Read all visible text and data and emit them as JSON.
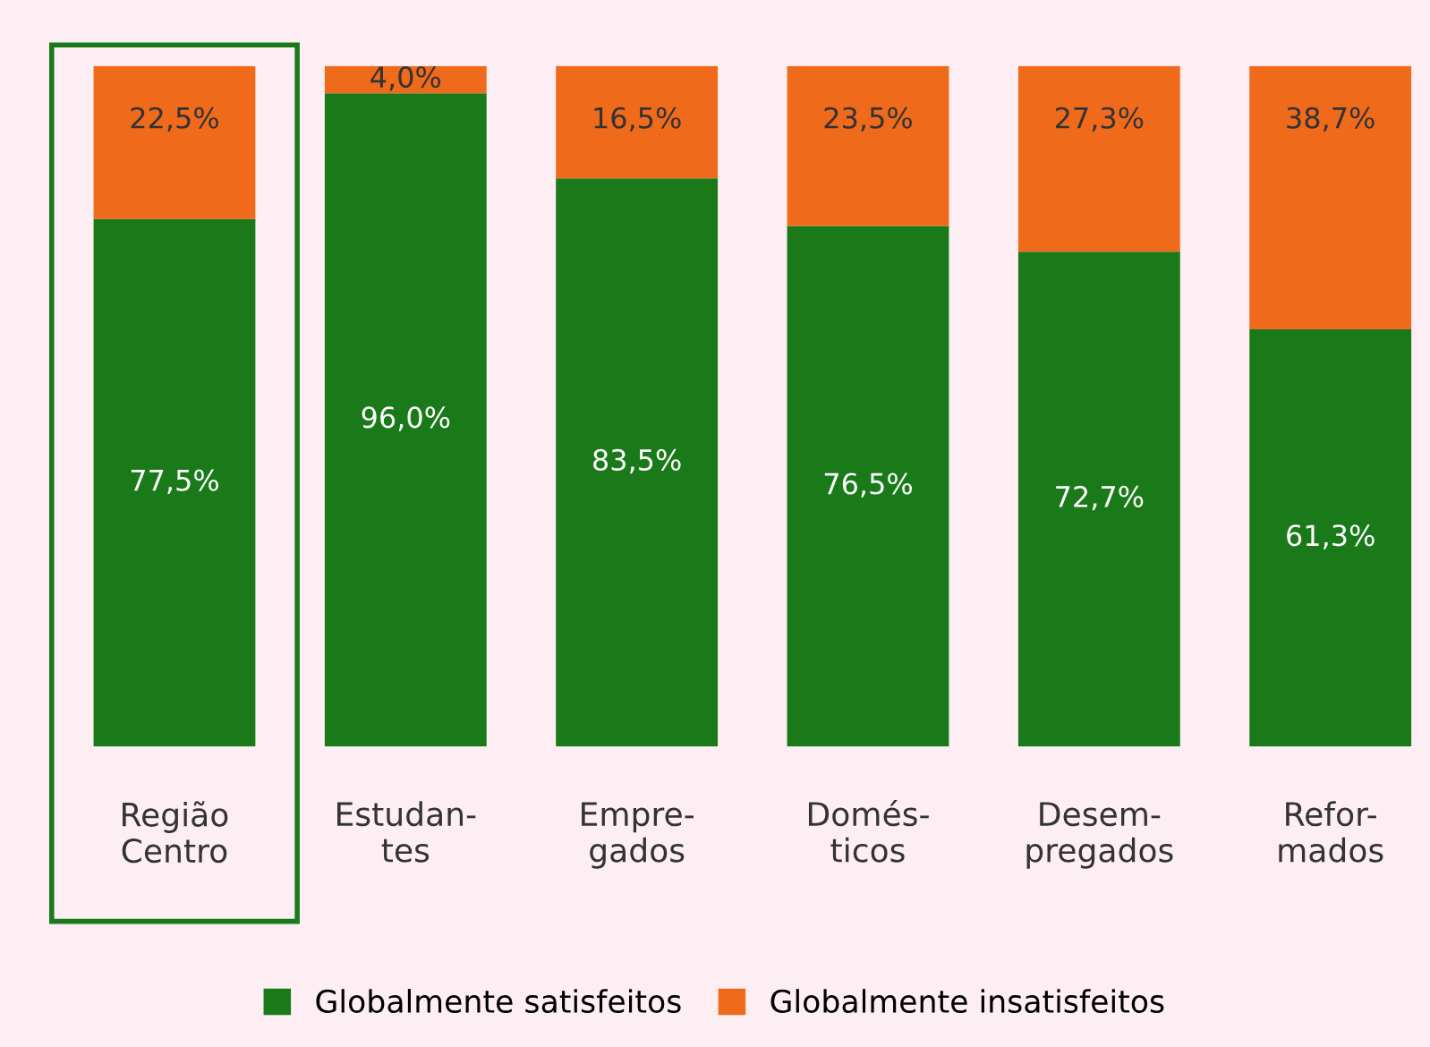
{
  "chart_data": {
    "type": "bar",
    "stacked": true,
    "categories": [
      "Região\nCentro",
      "Estudan-\ntes",
      "Empre-\ngados",
      "Domés-\nticos",
      "Desem-\npregados",
      "Refor-\nmados"
    ],
    "series": [
      {
        "name": "Globalmente satisfeitos",
        "color": "#1a7a1a",
        "values": [
          77.5,
          96.0,
          83.5,
          76.5,
          72.7,
          61.3
        ],
        "value_labels": [
          "77,5%",
          "96,0%",
          "83,5%",
          "76,5%",
          "72,7%",
          "61,3%"
        ]
      },
      {
        "name": "Globalmente insatisfeitos",
        "color": "#f06a1c",
        "values": [
          22.5,
          4.0,
          16.5,
          23.5,
          27.3,
          38.7
        ],
        "value_labels": [
          "22,5%",
          "4,0%",
          "16,5%",
          "23,5%",
          "27,3%",
          "38,7%"
        ]
      }
    ],
    "legend": "bottom",
    "grid": false
  }
}
